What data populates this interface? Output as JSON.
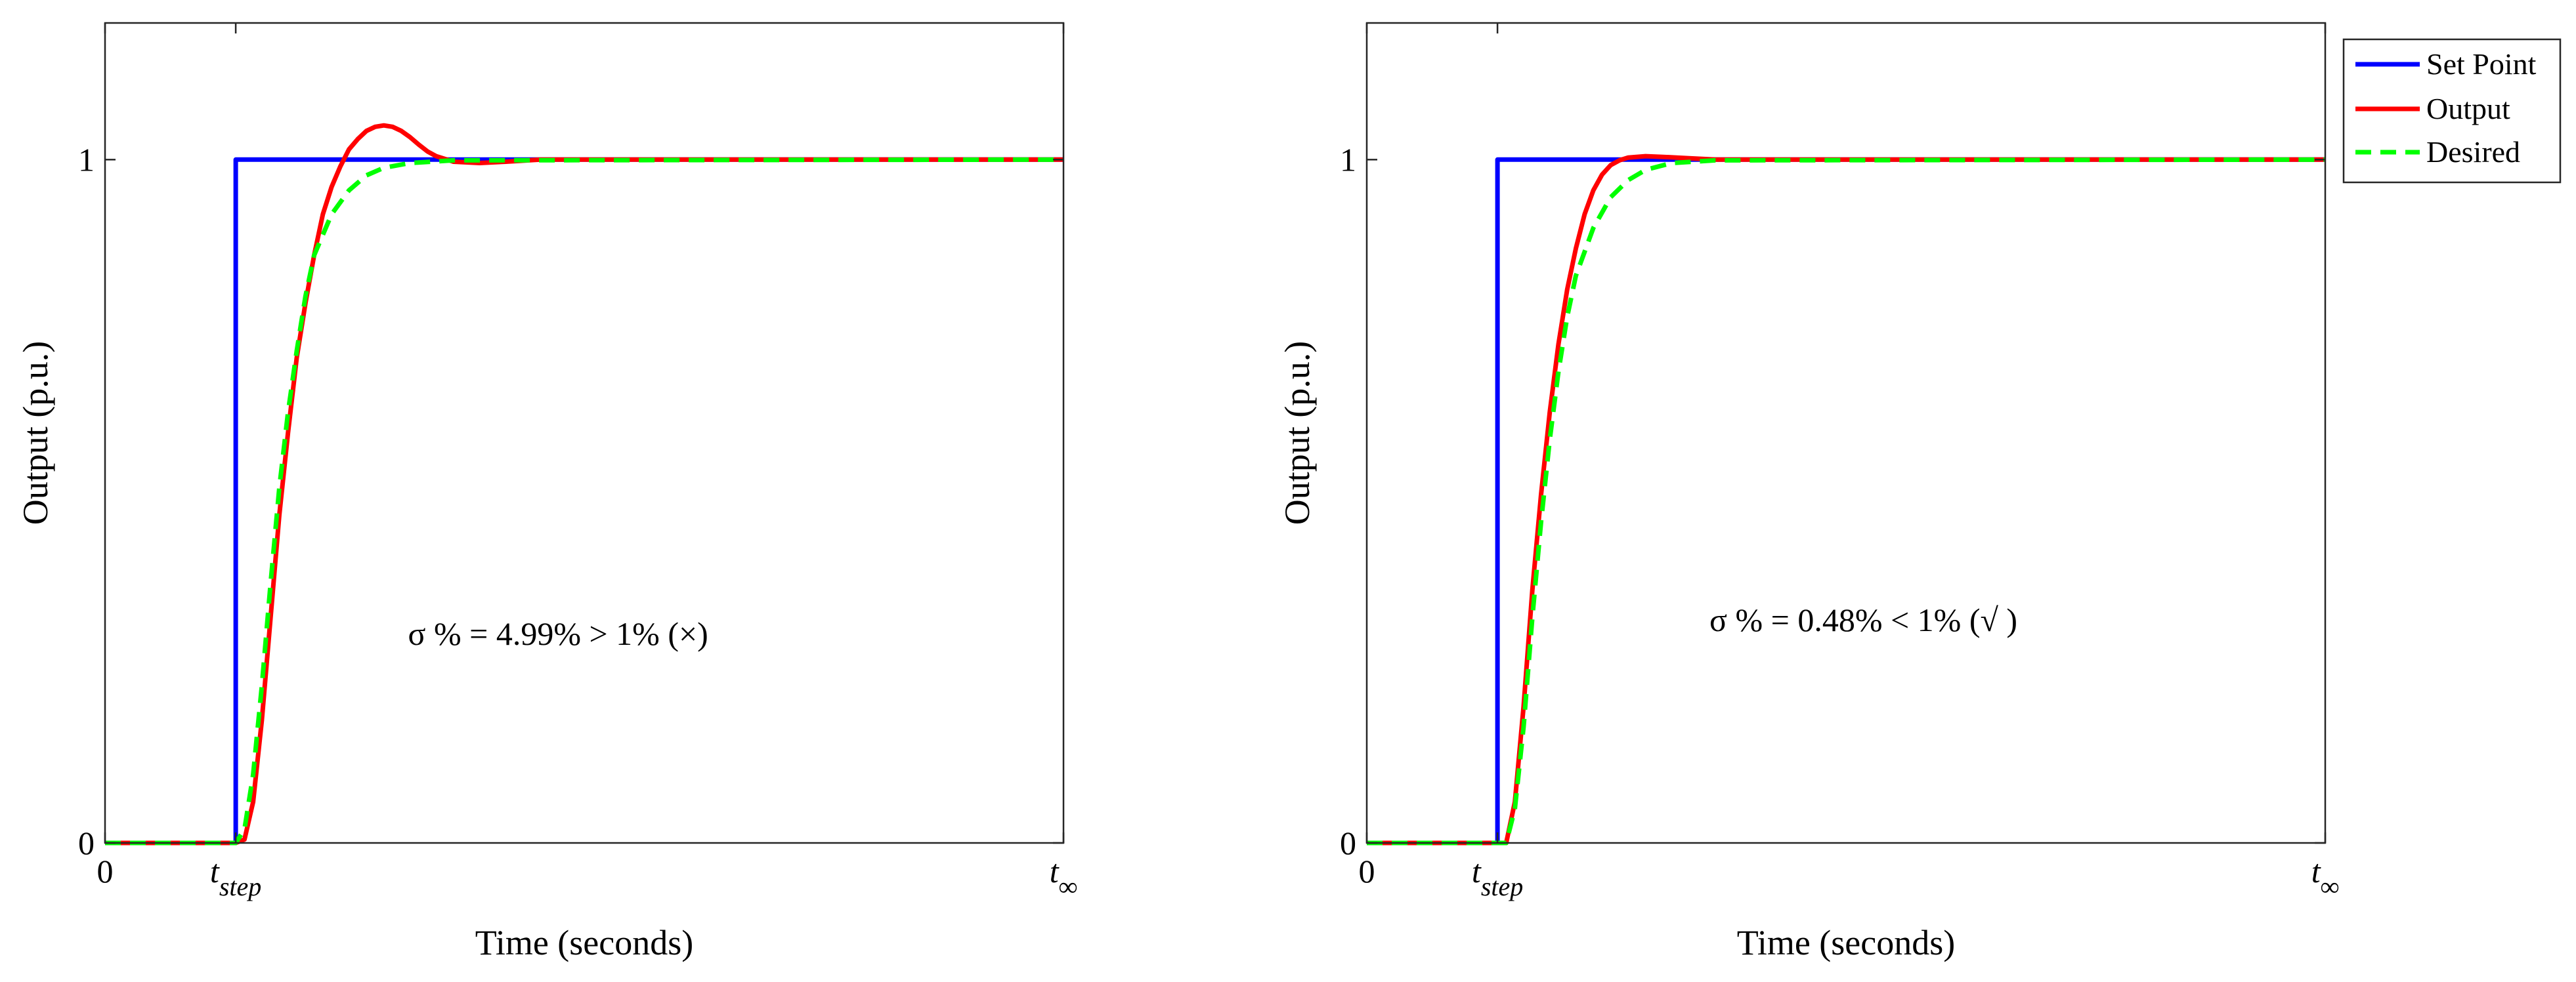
{
  "colors": {
    "set_point": "#0000ff",
    "output": "#ff0000",
    "desired": "#00ff00",
    "axis": "#262626"
  },
  "legend": {
    "placement": "outside-right of second chart",
    "entries": [
      "Set Point",
      "Output",
      "Desired"
    ]
  },
  "chart_data": [
    {
      "type": "line",
      "xlabel": "Time (seconds)",
      "ylabel": "Output (p.u.)",
      "x_ticks": [
        {
          "value": 0,
          "main": "0",
          "sub": ""
        },
        {
          "value": 1.5,
          "main": "t",
          "sub": "step"
        },
        {
          "value": 11,
          "main": "t",
          "sub": "∞"
        }
      ],
      "y_ticks": [
        {
          "value": 0,
          "label": "0"
        },
        {
          "value": 1,
          "label": "1"
        }
      ],
      "xlim": [
        0,
        11
      ],
      "ylim": [
        0,
        1.2
      ],
      "grid": false,
      "annotation": {
        "text": "σ % = 4.99% > 1% (×)",
        "x": 5.2,
        "y": 0.29
      },
      "series": [
        {
          "name": "Set Point",
          "style": "solid",
          "points": [
            [
              0,
              0
            ],
            [
              1.5,
              0
            ],
            [
              1.5,
              1
            ],
            [
              11,
              1
            ]
          ]
        },
        {
          "name": "Output",
          "style": "solid",
          "points": [
            [
              0,
              0
            ],
            [
              1.5,
              0
            ],
            [
              1.6,
              0.005
            ],
            [
              1.7,
              0.06
            ],
            [
              1.8,
              0.18
            ],
            [
              1.9,
              0.33
            ],
            [
              2.0,
              0.48
            ],
            [
              2.1,
              0.6
            ],
            [
              2.2,
              0.71
            ],
            [
              2.3,
              0.79
            ],
            [
              2.4,
              0.86
            ],
            [
              2.5,
              0.92
            ],
            [
              2.6,
              0.96
            ],
            [
              2.7,
              0.99
            ],
            [
              2.8,
              1.015
            ],
            [
              2.9,
              1.03
            ],
            [
              3.0,
              1.042
            ],
            [
              3.1,
              1.048
            ],
            [
              3.2,
              1.05
            ],
            [
              3.3,
              1.048
            ],
            [
              3.4,
              1.042
            ],
            [
              3.5,
              1.033
            ],
            [
              3.6,
              1.022
            ],
            [
              3.7,
              1.012
            ],
            [
              3.8,
              1.005
            ],
            [
              4.0,
              0.997
            ],
            [
              4.3,
              0.995
            ],
            [
              4.6,
              0.997
            ],
            [
              5.0,
              1.0
            ],
            [
              11,
              1.0
            ]
          ]
        },
        {
          "name": "Desired",
          "style": "dashed",
          "points": [
            [
              0,
              0
            ],
            [
              1.5,
              0
            ],
            [
              1.6,
              0.02
            ],
            [
              1.7,
              0.1
            ],
            [
              1.8,
              0.23
            ],
            [
              1.9,
              0.38
            ],
            [
              2.0,
              0.52
            ],
            [
              2.1,
              0.63
            ],
            [
              2.2,
              0.72
            ],
            [
              2.3,
              0.8
            ],
            [
              2.4,
              0.86
            ],
            [
              2.6,
              0.92
            ],
            [
              2.8,
              0.955
            ],
            [
              3.0,
              0.977
            ],
            [
              3.2,
              0.988
            ],
            [
              3.5,
              0.995
            ],
            [
              4.0,
              0.999
            ],
            [
              11,
              1.0
            ]
          ]
        }
      ]
    },
    {
      "type": "line",
      "xlabel": "Time (seconds)",
      "ylabel": "Output (p.u.)",
      "x_ticks": [
        {
          "value": 0,
          "main": "0",
          "sub": ""
        },
        {
          "value": 1.5,
          "main": "t",
          "sub": "step"
        },
        {
          "value": 11,
          "main": "t",
          "sub": "∞"
        }
      ],
      "y_ticks": [
        {
          "value": 0,
          "label": "0"
        },
        {
          "value": 1,
          "label": "1"
        }
      ],
      "xlim": [
        0,
        11
      ],
      "ylim": [
        0,
        1.2
      ],
      "grid": false,
      "annotation": {
        "text": "σ % = 0.48% < 1% (√ )",
        "x": 5.7,
        "y": 0.31
      },
      "series": [
        {
          "name": "Set Point",
          "style": "solid",
          "points": [
            [
              0,
              0
            ],
            [
              1.5,
              0
            ],
            [
              1.5,
              1
            ],
            [
              11,
              1
            ]
          ]
        },
        {
          "name": "Output",
          "style": "solid",
          "points": [
            [
              0,
              0
            ],
            [
              1.6,
              0
            ],
            [
              1.7,
              0.06
            ],
            [
              1.8,
              0.2
            ],
            [
              1.9,
              0.37
            ],
            [
              2.0,
              0.51
            ],
            [
              2.1,
              0.63
            ],
            [
              2.2,
              0.73
            ],
            [
              2.3,
              0.81
            ],
            [
              2.4,
              0.87
            ],
            [
              2.5,
              0.92
            ],
            [
              2.6,
              0.955
            ],
            [
              2.7,
              0.978
            ],
            [
              2.8,
              0.992
            ],
            [
              2.9,
              0.999
            ],
            [
              3.0,
              1.003
            ],
            [
              3.2,
              1.005
            ],
            [
              3.4,
              1.004
            ],
            [
              3.7,
              1.002
            ],
            [
              4.0,
              1.0
            ],
            [
              11,
              1.0
            ]
          ]
        },
        {
          "name": "Desired",
          "style": "dashed",
          "points": [
            [
              0,
              0
            ],
            [
              1.6,
              0
            ],
            [
              1.7,
              0.05
            ],
            [
              1.8,
              0.17
            ],
            [
              1.9,
              0.33
            ],
            [
              2.0,
              0.47
            ],
            [
              2.1,
              0.59
            ],
            [
              2.2,
              0.69
            ],
            [
              2.3,
              0.77
            ],
            [
              2.4,
              0.83
            ],
            [
              2.6,
              0.9
            ],
            [
              2.8,
              0.945
            ],
            [
              3.0,
              0.97
            ],
            [
              3.2,
              0.985
            ],
            [
              3.5,
              0.995
            ],
            [
              4.0,
              0.999
            ],
            [
              11,
              1.0
            ]
          ]
        }
      ]
    }
  ]
}
